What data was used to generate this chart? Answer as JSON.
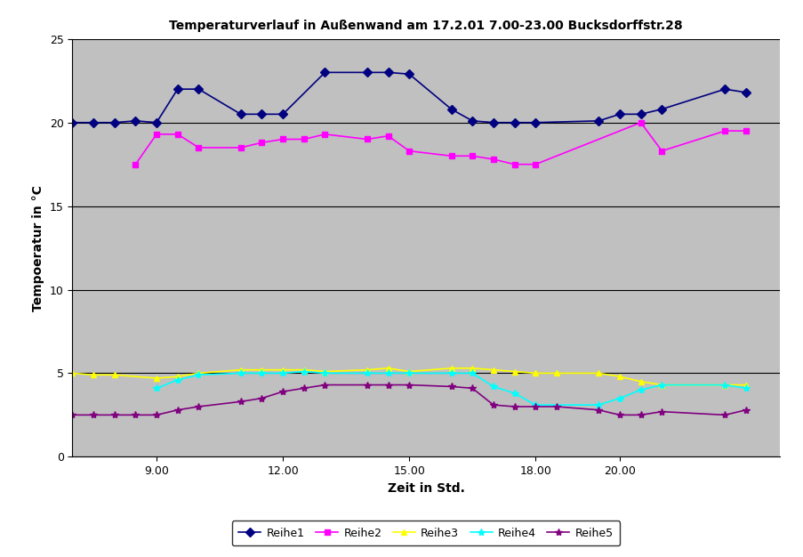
{
  "title": "Temperaturverlauf in Außenwand am 17.2.01 7.00-23.00 Bucksdorffstr.28",
  "xlabel": "Zeit in Std.",
  "ylabel": "Tempoeratur in °C",
  "background_color": "#C0C0C0",
  "plot_bg": "#C0C0C0",
  "fig_bg": "#FFFFFF",
  "xlim": [
    7.0,
    23.8
  ],
  "ylim": [
    0,
    25
  ],
  "yticks": [
    0,
    5,
    10,
    15,
    20,
    25
  ],
  "xticks": [
    9.0,
    12.0,
    15.0,
    18.0,
    20.0
  ],
  "xtick_labels": [
    "9.00",
    "12.00",
    "15.00",
    "18.00",
    "20.00"
  ],
  "series": {
    "Reihe1": {
      "x": [
        7.0,
        7.5,
        8.0,
        8.5,
        9.0,
        9.5,
        10.0,
        11.0,
        11.5,
        12.0,
        13.0,
        14.0,
        14.5,
        15.0,
        16.0,
        16.5,
        17.0,
        17.5,
        18.0,
        19.5,
        20.0,
        20.5,
        21.0,
        22.5,
        23.0
      ],
      "y": [
        20.0,
        20.0,
        20.0,
        20.1,
        20.0,
        22.0,
        22.0,
        20.5,
        20.5,
        20.5,
        23.0,
        23.0,
        23.0,
        22.9,
        20.8,
        20.1,
        20.0,
        20.0,
        20.0,
        20.1,
        20.5,
        20.5,
        20.8,
        22.0,
        21.8
      ],
      "color": "#000080",
      "marker": "D",
      "markersize": 5,
      "linewidth": 1.2
    },
    "Reihe2": {
      "x": [
        8.5,
        9.0,
        9.5,
        10.0,
        11.0,
        11.5,
        12.0,
        12.5,
        13.0,
        14.0,
        14.5,
        15.0,
        16.0,
        16.5,
        17.0,
        17.5,
        18.0,
        20.5,
        21.0,
        22.5,
        23.0
      ],
      "y": [
        17.5,
        19.3,
        19.3,
        18.5,
        18.5,
        18.8,
        19.0,
        19.0,
        19.3,
        19.0,
        19.2,
        18.3,
        18.0,
        18.0,
        17.8,
        17.5,
        17.5,
        20.0,
        18.3,
        19.5,
        19.5
      ],
      "color": "#FF00FF",
      "marker": "s",
      "markersize": 5,
      "linewidth": 1.2
    },
    "Reihe3": {
      "x": [
        7.0,
        7.5,
        8.0,
        9.0,
        9.5,
        10.0,
        11.0,
        11.5,
        12.0,
        12.5,
        13.0,
        14.0,
        14.5,
        15.0,
        16.0,
        16.5,
        17.0,
        17.5,
        18.0,
        18.5,
        19.5,
        20.0,
        20.5,
        21.0,
        22.5,
        23.0
      ],
      "y": [
        5.0,
        4.9,
        4.9,
        4.7,
        4.8,
        5.0,
        5.2,
        5.2,
        5.2,
        5.2,
        5.1,
        5.2,
        5.3,
        5.1,
        5.3,
        5.3,
        5.2,
        5.1,
        5.0,
        5.0,
        5.0,
        4.8,
        4.5,
        4.3,
        4.3,
        4.3
      ],
      "color": "#FFFF00",
      "marker": "^",
      "markersize": 5,
      "linewidth": 1.2
    },
    "Reihe4": {
      "x": [
        9.0,
        9.5,
        10.0,
        11.0,
        11.5,
        12.0,
        12.5,
        13.0,
        14.0,
        14.5,
        15.0,
        16.0,
        16.5,
        17.0,
        17.5,
        18.0,
        19.5,
        20.0,
        20.5,
        21.0,
        22.5,
        23.0
      ],
      "y": [
        4.1,
        4.6,
        4.9,
        5.0,
        5.0,
        5.0,
        5.1,
        5.0,
        5.0,
        5.0,
        5.0,
        5.0,
        5.0,
        4.2,
        3.8,
        3.1,
        3.1,
        3.5,
        4.0,
        4.3,
        4.3,
        4.1
      ],
      "color": "#00FFFF",
      "marker": "*",
      "markersize": 6,
      "linewidth": 1.2
    },
    "Reihe5": {
      "x": [
        7.0,
        7.5,
        8.0,
        8.5,
        9.0,
        9.5,
        10.0,
        11.0,
        11.5,
        12.0,
        12.5,
        13.0,
        14.0,
        14.5,
        15.0,
        16.0,
        16.5,
        17.0,
        17.5,
        18.0,
        18.5,
        19.5,
        20.0,
        20.5,
        21.0,
        22.5,
        23.0
      ],
      "y": [
        2.5,
        2.5,
        2.5,
        2.5,
        2.5,
        2.8,
        3.0,
        3.3,
        3.5,
        3.9,
        4.1,
        4.3,
        4.3,
        4.3,
        4.3,
        4.2,
        4.1,
        3.1,
        3.0,
        3.0,
        3.0,
        2.8,
        2.5,
        2.5,
        2.7,
        2.5,
        2.8
      ],
      "color": "#800080",
      "marker": "*",
      "markersize": 6,
      "linewidth": 1.2
    }
  },
  "legend_order": [
    "Reihe1",
    "Reihe2",
    "Reihe3",
    "Reihe4",
    "Reihe5"
  ],
  "title_fontsize": 10,
  "label_fontsize": 10,
  "tick_fontsize": 9,
  "legend_fontsize": 9
}
